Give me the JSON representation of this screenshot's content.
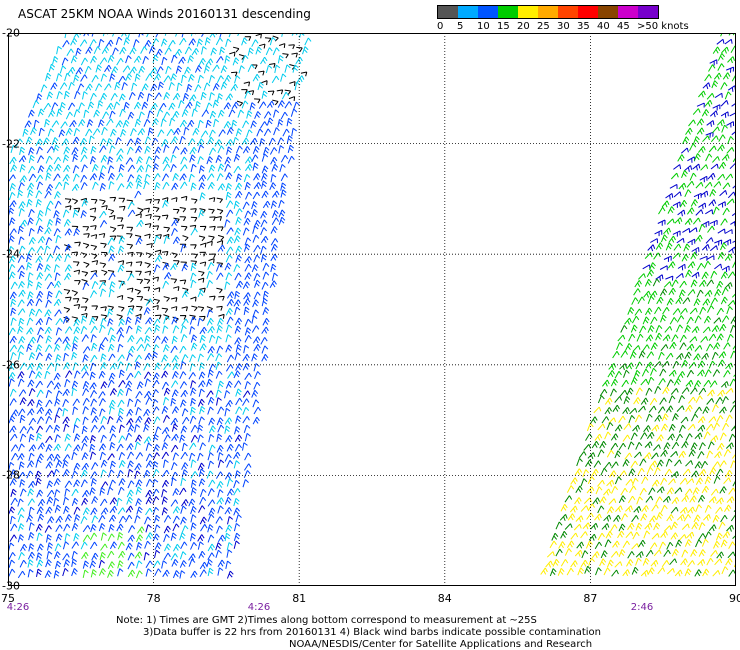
{
  "title": "ASCAT 25KM NOAA Winds 20160131 descending",
  "legend": {
    "colors": [
      "#555555",
      "#00aaff",
      "#0055ff",
      "#00cc00",
      "#ffee00",
      "#ffaa00",
      "#ff4400",
      "#ff0000",
      "#884400",
      "#cc00cc",
      "#7700cc"
    ],
    "labels": [
      "0",
      "5",
      "10",
      "15",
      "20",
      "25",
      "30",
      "35",
      "40",
      "45",
      ">50 knots"
    ]
  },
  "map": {
    "lon_min": 75,
    "lon_max": 90,
    "lat_top": -20,
    "lat_bottom": -30,
    "lon_labels": [
      "75",
      "78",
      "81",
      "84",
      "87",
      "90"
    ],
    "lat_labels": [
      "-20",
      "-22",
      "-24",
      "-26",
      "-28",
      "-30"
    ],
    "pass_times": [
      "4:26",
      "4:26",
      "2:46"
    ],
    "swaths": [
      {
        "name": "western-swath",
        "time": "4:26"
      },
      {
        "name": "eastern-swath",
        "time": "2:46"
      }
    ]
  },
  "notes": {
    "line1": "Note: 1) Times are GMT 2)Times along bottom correspond to measurement at ~25S",
    "line2": "3)Data buffer is 22 hrs from 20160131 4) Black wind barbs indicate possible contamination",
    "line3": "NOAA/NESDIS/Center for Satellite Applications and Research"
  }
}
